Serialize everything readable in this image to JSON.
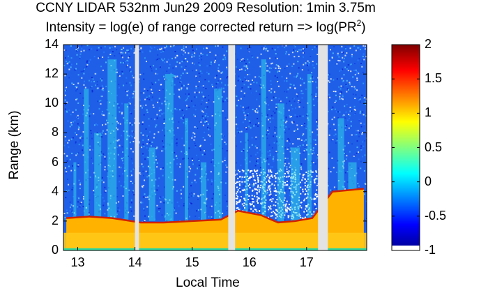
{
  "chart_data": {
    "type": "heatmap",
    "title": "CCNY LIDAR 532nm Jun29 2009 Resolution: 1min 3.75m",
    "subtitle": {
      "main": "Intensity = log(e) of range corrected return => log(PR",
      "sup": "2",
      "tail": ")"
    },
    "xlabel": "Local Time",
    "ylabel": "Range (km)",
    "xlim": [
      12.75,
      18.05
    ],
    "ylim": [
      0,
      14
    ],
    "x_ticks": [
      13,
      14,
      15,
      16,
      17
    ],
    "x_tick_labels": [
      "13",
      "14",
      "15",
      "16",
      "17"
    ],
    "y_ticks": [
      0,
      2,
      4,
      6,
      8,
      10,
      12,
      14
    ],
    "y_tick_labels": [
      "0",
      "2",
      "4",
      "6",
      "8",
      "10",
      "12",
      "14"
    ],
    "colorbar": {
      "colormap": "jet",
      "range": [
        -1,
        2
      ],
      "ticks": [
        -1,
        -0.5,
        0,
        0.5,
        1,
        1.5,
        2
      ],
      "tick_labels": [
        "-1",
        "-0.5",
        "0",
        "0.5",
        "1",
        "1.5",
        "2"
      ]
    },
    "data_gaps": [
      [
        14.0,
        14.07
      ],
      [
        15.63,
        15.75
      ],
      [
        17.2,
        17.37
      ]
    ],
    "boundary_layer_height_km": [
      [
        12.8,
        2.2
      ],
      [
        13.2,
        2.3
      ],
      [
        13.6,
        2.2
      ],
      [
        14.1,
        1.9
      ],
      [
        14.5,
        1.9
      ],
      [
        15.0,
        2.0
      ],
      [
        15.5,
        2.1
      ],
      [
        15.8,
        2.7
      ],
      [
        16.2,
        2.4
      ],
      [
        16.5,
        1.9
      ],
      [
        16.8,
        2.0
      ],
      [
        17.1,
        2.2
      ],
      [
        17.45,
        4.0
      ],
      [
        18.0,
        4.2
      ]
    ],
    "aerosol_plumes_local_time": [
      12.95,
      13.15,
      13.35,
      13.6,
      13.85,
      14.3,
      14.6,
      14.9,
      15.2,
      15.45,
      15.95,
      16.25,
      16.55,
      16.8,
      17.05,
      17.6,
      17.8
    ]
  }
}
